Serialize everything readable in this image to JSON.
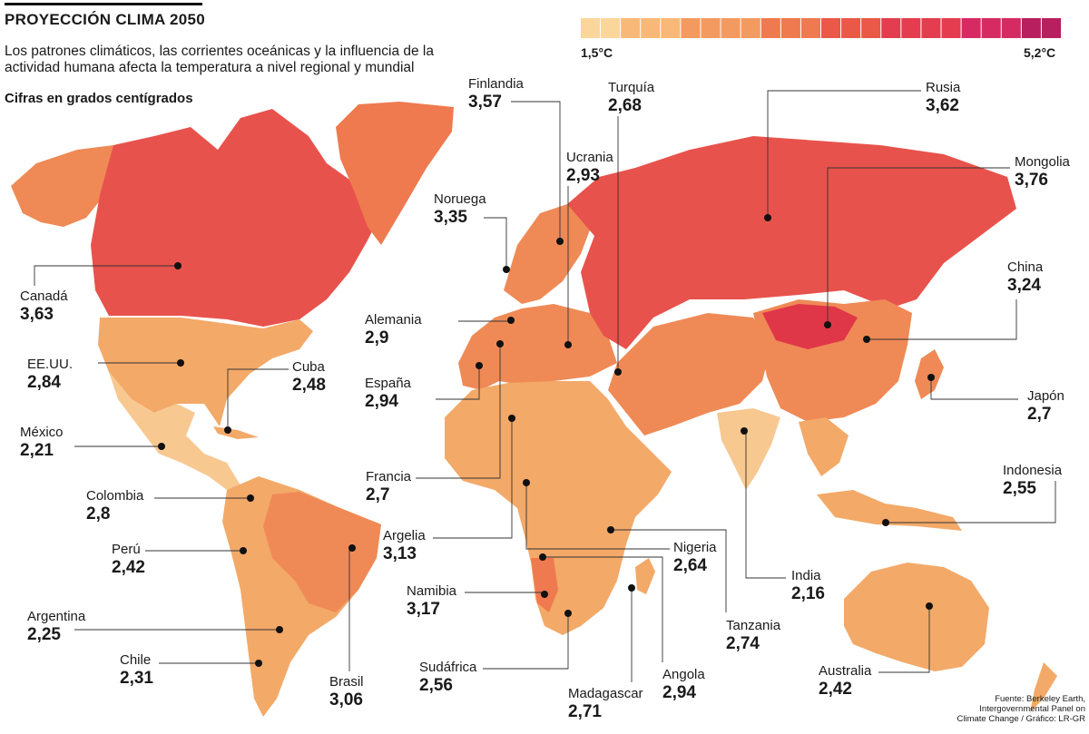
{
  "header": {
    "title": "PROYECCIÓN CLIMA 2050",
    "subtitle": "Los patrones climáticos, las corrientes oceánicas y la influencia de la actividad humana afecta la temperatura a nivel regional y mundial",
    "units": "Cifras en grados centígrados"
  },
  "legend": {
    "min_label": "1,5°C",
    "max_label": "5,2°C",
    "min_value": 1.5,
    "max_value": 5.2,
    "colors": [
      "#fbd69a",
      "#f8b877",
      "#f39a61",
      "#ef7a4f",
      "#ea5848",
      "#e43d4f",
      "#d62a63",
      "#b81f5e"
    ]
  },
  "colors": {
    "base_land": "#f3a968",
    "warm_land": "#ef8a56",
    "hot_land": "#e8524c",
    "hottest_land": "#e03748",
    "pale_land": "#f8c891"
  },
  "countries": [
    {
      "name": "Finlandia",
      "value": "3,57"
    },
    {
      "name": "Turquía",
      "value": "2,68"
    },
    {
      "name": "Rusia",
      "value": "3,62"
    },
    {
      "name": "Ucrania",
      "value": "2,93"
    },
    {
      "name": "Mongolia",
      "value": "3,76"
    },
    {
      "name": "Noruega",
      "value": "3,35"
    },
    {
      "name": "China",
      "value": "3,24"
    },
    {
      "name": "Canadá",
      "value": "3,63"
    },
    {
      "name": "Alemania",
      "value": "2,9"
    },
    {
      "name": "EE.UU.",
      "value": "2,84"
    },
    {
      "name": "Cuba",
      "value": "2,48"
    },
    {
      "name": "España",
      "value": "2,94"
    },
    {
      "name": "Japón",
      "value": "2,7"
    },
    {
      "name": "México",
      "value": "2,21"
    },
    {
      "name": "Francia",
      "value": "2,7"
    },
    {
      "name": "Indonesia",
      "value": "2,55"
    },
    {
      "name": "Colombia",
      "value": "2,8"
    },
    {
      "name": "Argelia",
      "value": "3,13"
    },
    {
      "name": "Nigeria",
      "value": "2,64"
    },
    {
      "name": "Perú",
      "value": "2,42"
    },
    {
      "name": "India",
      "value": "2,16"
    },
    {
      "name": "Namibia",
      "value": "3,17"
    },
    {
      "name": "Argentina",
      "value": "2,25"
    },
    {
      "name": "Tanzania",
      "value": "2,74"
    },
    {
      "name": "Chile",
      "value": "2,31"
    },
    {
      "name": "Australia",
      "value": "2,42"
    },
    {
      "name": "Brasil",
      "value": "3,06"
    },
    {
      "name": "Sudáfrica",
      "value": "2,56"
    },
    {
      "name": "Angola",
      "value": "2,94"
    },
    {
      "name": "Madagascar",
      "value": "2,71"
    }
  ],
  "source": {
    "line1": "Fuente: Berkeley Earth,",
    "line2": "Intergovernmental Panel on",
    "line3": "Climate Change / Gráfico: LR-GR"
  }
}
